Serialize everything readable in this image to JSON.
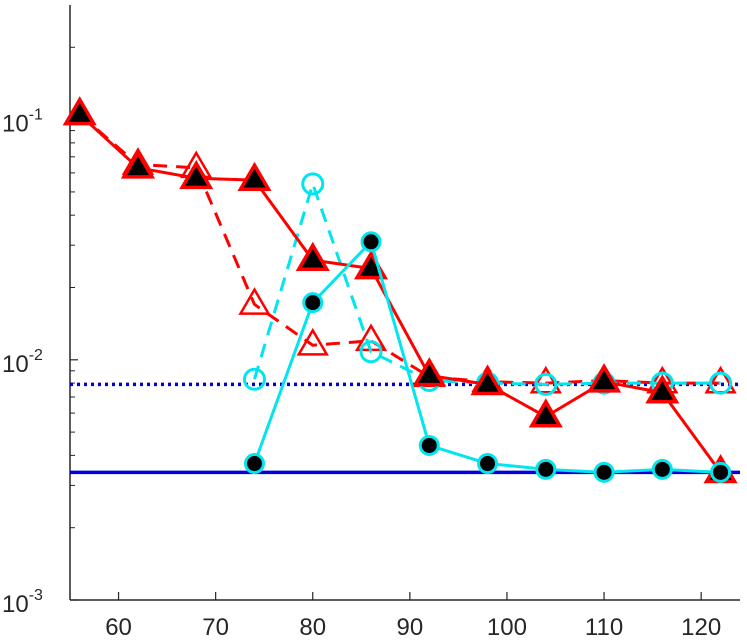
{
  "chart_data": {
    "type": "line",
    "title": "",
    "xlabel": "",
    "ylabel": "",
    "xlim": [
      55,
      124
    ],
    "ylim": [
      0.001,
      0.3
    ],
    "yscale": "log",
    "grid": false,
    "legend": "none",
    "x_ticks": [
      {
        "value": 60,
        "label": "60"
      },
      {
        "value": 70,
        "label": "70"
      },
      {
        "value": 80,
        "label": "80"
      },
      {
        "value": 90,
        "label": "90"
      },
      {
        "value": 100,
        "label": "100"
      },
      {
        "value": 110,
        "label": "110"
      },
      {
        "value": 120,
        "label": "120"
      }
    ],
    "y_ticks": [
      {
        "value": 0.1,
        "base": "10",
        "exp": "-1"
      },
      {
        "value": 0.01,
        "base": "10",
        "exp": "-2"
      },
      {
        "value": 0.001,
        "base": "10",
        "exp": "-3"
      }
    ],
    "series": [
      {
        "color": "#ff0000",
        "line": "solid",
        "marker": "triangle-filled",
        "x": [
          56,
          62,
          68,
          74,
          80,
          86,
          92,
          98,
          104,
          110,
          116,
          122
        ],
        "y": [
          0.105,
          0.063,
          0.057,
          0.056,
          0.026,
          0.024,
          0.0086,
          0.0079,
          0.0058,
          0.0081,
          0.0073,
          0.0034
        ]
      },
      {
        "color": "#ff0000",
        "line": "dashed",
        "marker": "triangle-open",
        "x": [
          56,
          62,
          68,
          74,
          80,
          86,
          92,
          98,
          104,
          110,
          116,
          122
        ],
        "y": [
          0.105,
          0.065,
          0.063,
          0.017,
          0.0115,
          0.012,
          0.0085,
          0.0081,
          0.008,
          0.0082,
          0.008,
          0.008
        ]
      },
      {
        "color": "#00e5ee",
        "line": "dashed",
        "marker": "circle-open",
        "x": [
          74,
          80,
          86,
          92,
          98,
          104,
          110,
          116,
          122
        ],
        "y": [
          0.0083,
          0.054,
          0.0108,
          0.0082,
          0.008,
          0.0079,
          0.008,
          0.008,
          0.008
        ]
      },
      {
        "color": "#00e5ee",
        "line": "solid",
        "marker": "circle-filled",
        "x": [
          74,
          80,
          86,
          92,
          98,
          104,
          110,
          116,
          122
        ],
        "y": [
          0.0037,
          0.0173,
          0.031,
          0.0044,
          0.0037,
          0.0035,
          0.0034,
          0.0035,
          0.0034
        ]
      },
      {
        "color": "#0000dd",
        "line": "dotted",
        "marker": "none",
        "x": [
          55,
          124
        ],
        "y": [
          0.0079,
          0.0079
        ]
      },
      {
        "color": "#0000dd",
        "line": "solid",
        "marker": "none",
        "x": [
          55,
          124
        ],
        "y": [
          0.0034,
          0.0034
        ]
      }
    ]
  }
}
